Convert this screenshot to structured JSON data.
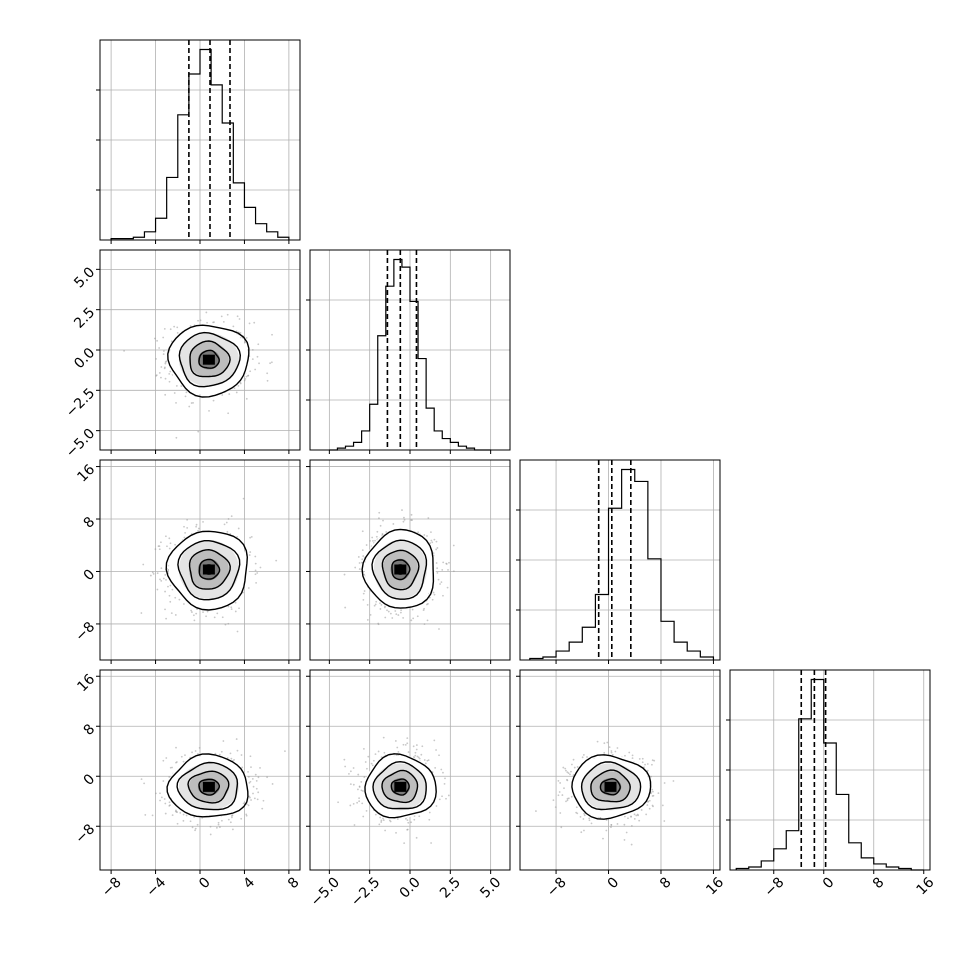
{
  "figure": {
    "type": "corner-plot"
  },
  "chart_data": {
    "type": "corner",
    "num_params": 4,
    "grid": true,
    "colors": {
      "points": "#9a9a9a",
      "contour": "#000000",
      "hist": "#000000",
      "grid": "#b0b0b0",
      "density_dark": "#000000",
      "density_light": "#ffffff"
    },
    "axes": [
      {
        "range": [
          -9,
          9
        ],
        "ticks": [
          -8,
          -4,
          0,
          4,
          8
        ],
        "tick_labels": [
          "−8",
          "−4",
          "0",
          "4",
          "8"
        ]
      },
      {
        "range": [
          -6.2,
          6.2
        ],
        "ticks": [
          -5.0,
          -2.5,
          0.0,
          2.5,
          5.0
        ],
        "tick_labels": [
          "−5.0",
          "−2.5",
          "0.0",
          "2.5",
          "5.0"
        ]
      },
      {
        "range": [
          -13.5,
          17
        ],
        "ticks": [
          -8,
          0,
          8,
          16
        ],
        "tick_labels": [
          "−8",
          "0",
          "8",
          "16"
        ]
      },
      {
        "range": [
          -15,
          17
        ],
        "ticks": [
          -8,
          0,
          8,
          16
        ],
        "tick_labels": [
          "−8",
          "0",
          "8",
          "16"
        ]
      }
    ],
    "histograms": [
      {
        "param": 0,
        "bin_edges": [
          -8,
          -7,
          -6,
          -5,
          -4,
          -3,
          -2,
          -1,
          0,
          1,
          2,
          3,
          4,
          5,
          6,
          7,
          8
        ],
        "values": [
          0.5,
          0.5,
          1,
          3,
          8,
          23,
          46,
          61,
          70,
          57,
          43,
          21,
          12,
          6,
          3,
          1
        ],
        "quantiles": [
          -1.0,
          0.9,
          2.7
        ]
      },
      {
        "param": 1,
        "bin_edges": [
          -5.0,
          -4.5,
          -4.0,
          -3.5,
          -3.0,
          -2.5,
          -2.0,
          -1.5,
          -1.0,
          -0.5,
          0.0,
          0.5,
          1.0,
          1.5,
          2.0,
          2.5,
          3.0,
          3.5,
          4.0,
          4.5,
          5.0
        ],
        "values": [
          0,
          0.5,
          1,
          2,
          5,
          12,
          30,
          43,
          50,
          48,
          39,
          24,
          11,
          5,
          3,
          2,
          1,
          0.5,
          0,
          0
        ],
        "quantiles": [
          -1.4,
          -0.6,
          0.4
        ]
      },
      {
        "param": 2,
        "bin_edges": [
          -12,
          -10,
          -8,
          -6,
          -4,
          -2,
          0,
          2,
          4,
          6,
          8,
          10,
          12,
          14,
          16
        ],
        "values": [
          0.5,
          1,
          3,
          6,
          11,
          22,
          51,
          64,
          60,
          34,
          13,
          6,
          3,
          1
        ],
        "quantiles": [
          -1.5,
          0.5,
          3.4
        ]
      },
      {
        "param": 3,
        "bin_edges": [
          -14,
          -12,
          -10,
          -8,
          -6,
          -4,
          -2,
          0,
          2,
          4,
          6,
          8,
          10,
          12,
          14,
          16
        ],
        "values": [
          0.5,
          1,
          3,
          7,
          13,
          50,
          63,
          42,
          25,
          9,
          4,
          2,
          1,
          0.5,
          0
        ],
        "quantiles": [
          -3.6,
          -1.5,
          0.3
        ]
      }
    ],
    "scatter_pairs": [
      {
        "x_param": 0,
        "y_param": 1,
        "center": [
          0.8,
          -0.6
        ],
        "sigma": [
          1.8,
          1.1
        ]
      },
      {
        "x_param": 0,
        "y_param": 2,
        "center": [
          0.8,
          0.3
        ],
        "sigma": [
          1.8,
          3.0
        ]
      },
      {
        "x_param": 1,
        "y_param": 2,
        "center": [
          -0.6,
          0.3
        ],
        "sigma": [
          1.1,
          3.0
        ]
      },
      {
        "x_param": 0,
        "y_param": 3,
        "center": [
          0.8,
          -1.7
        ],
        "sigma": [
          1.8,
          2.5
        ]
      },
      {
        "x_param": 1,
        "y_param": 3,
        "center": [
          -0.6,
          -1.7
        ],
        "sigma": [
          1.1,
          2.5
        ]
      },
      {
        "x_param": 2,
        "y_param": 3,
        "center": [
          0.3,
          -1.7
        ],
        "sigma": [
          3.0,
          2.5
        ]
      }
    ],
    "contour_levels": [
      0.5,
      1.0,
      1.5,
      2.0
    ],
    "quantile_style": "dashed"
  }
}
